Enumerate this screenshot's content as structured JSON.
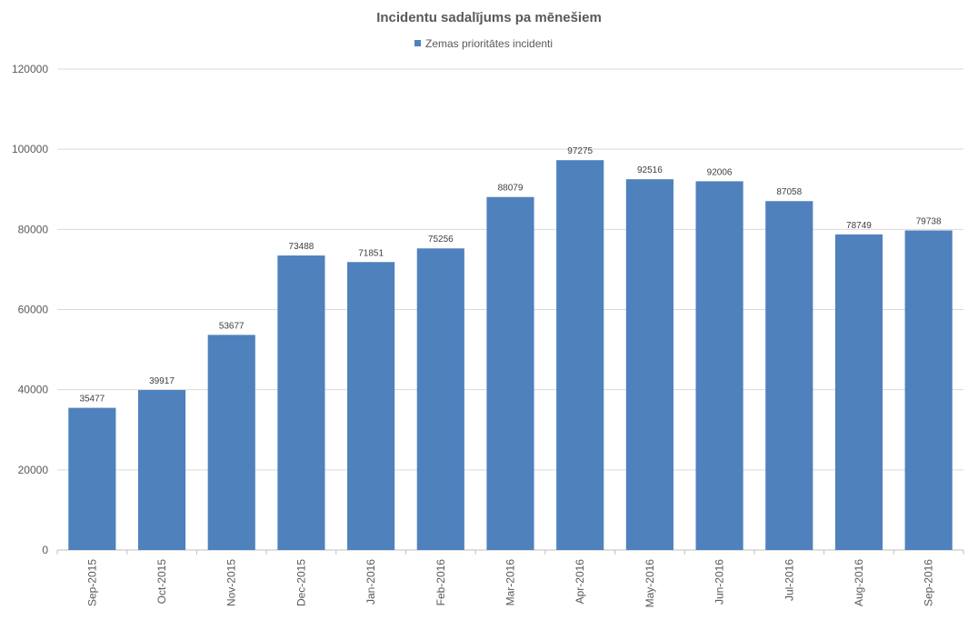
{
  "chart_data": {
    "type": "bar",
    "title": "Incidentu sadalījums pa mēnešiem",
    "xlabel": "",
    "ylabel": "",
    "ylim": [
      0,
      120000
    ],
    "yticks": [
      0,
      20000,
      40000,
      60000,
      80000,
      100000,
      120000
    ],
    "grid": true,
    "legend_position": "top",
    "categories": [
      "Sep-2015",
      "Oct-2015",
      "Nov-2015",
      "Dec-2015",
      "Jan-2016",
      "Feb-2016",
      "Mar-2016",
      "Apr-2016",
      "May-2016",
      "Jun-2016",
      "Jul-2016",
      "Aug-2016",
      "Sep-2016"
    ],
    "series": [
      {
        "name": "Zemas prioritātes incidenti",
        "color": "#4F81BD",
        "values": [
          35477,
          39917,
          53677,
          73488,
          71851,
          75256,
          88079,
          97275,
          92516,
          92006,
          87058,
          78749,
          79738
        ]
      }
    ]
  }
}
